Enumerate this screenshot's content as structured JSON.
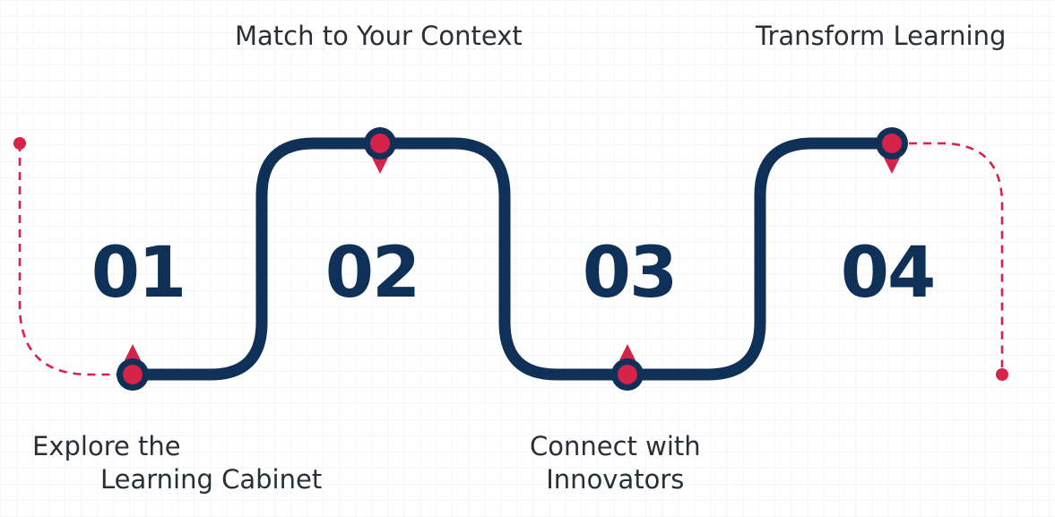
{
  "colors": {
    "path": "#0f3158",
    "accent": "#d6234a",
    "label_text": "#2a2f36"
  },
  "steps": [
    {
      "number": "01",
      "label_line1": "Explore the",
      "label_line2": "Learning Cabinet"
    },
    {
      "number": "02",
      "label_line1": "Match to Your Context"
    },
    {
      "number": "03",
      "label_line1": "Connect with",
      "label_line2": "Innovators"
    },
    {
      "number": "04",
      "label_line1": "Transform Learning"
    }
  ]
}
